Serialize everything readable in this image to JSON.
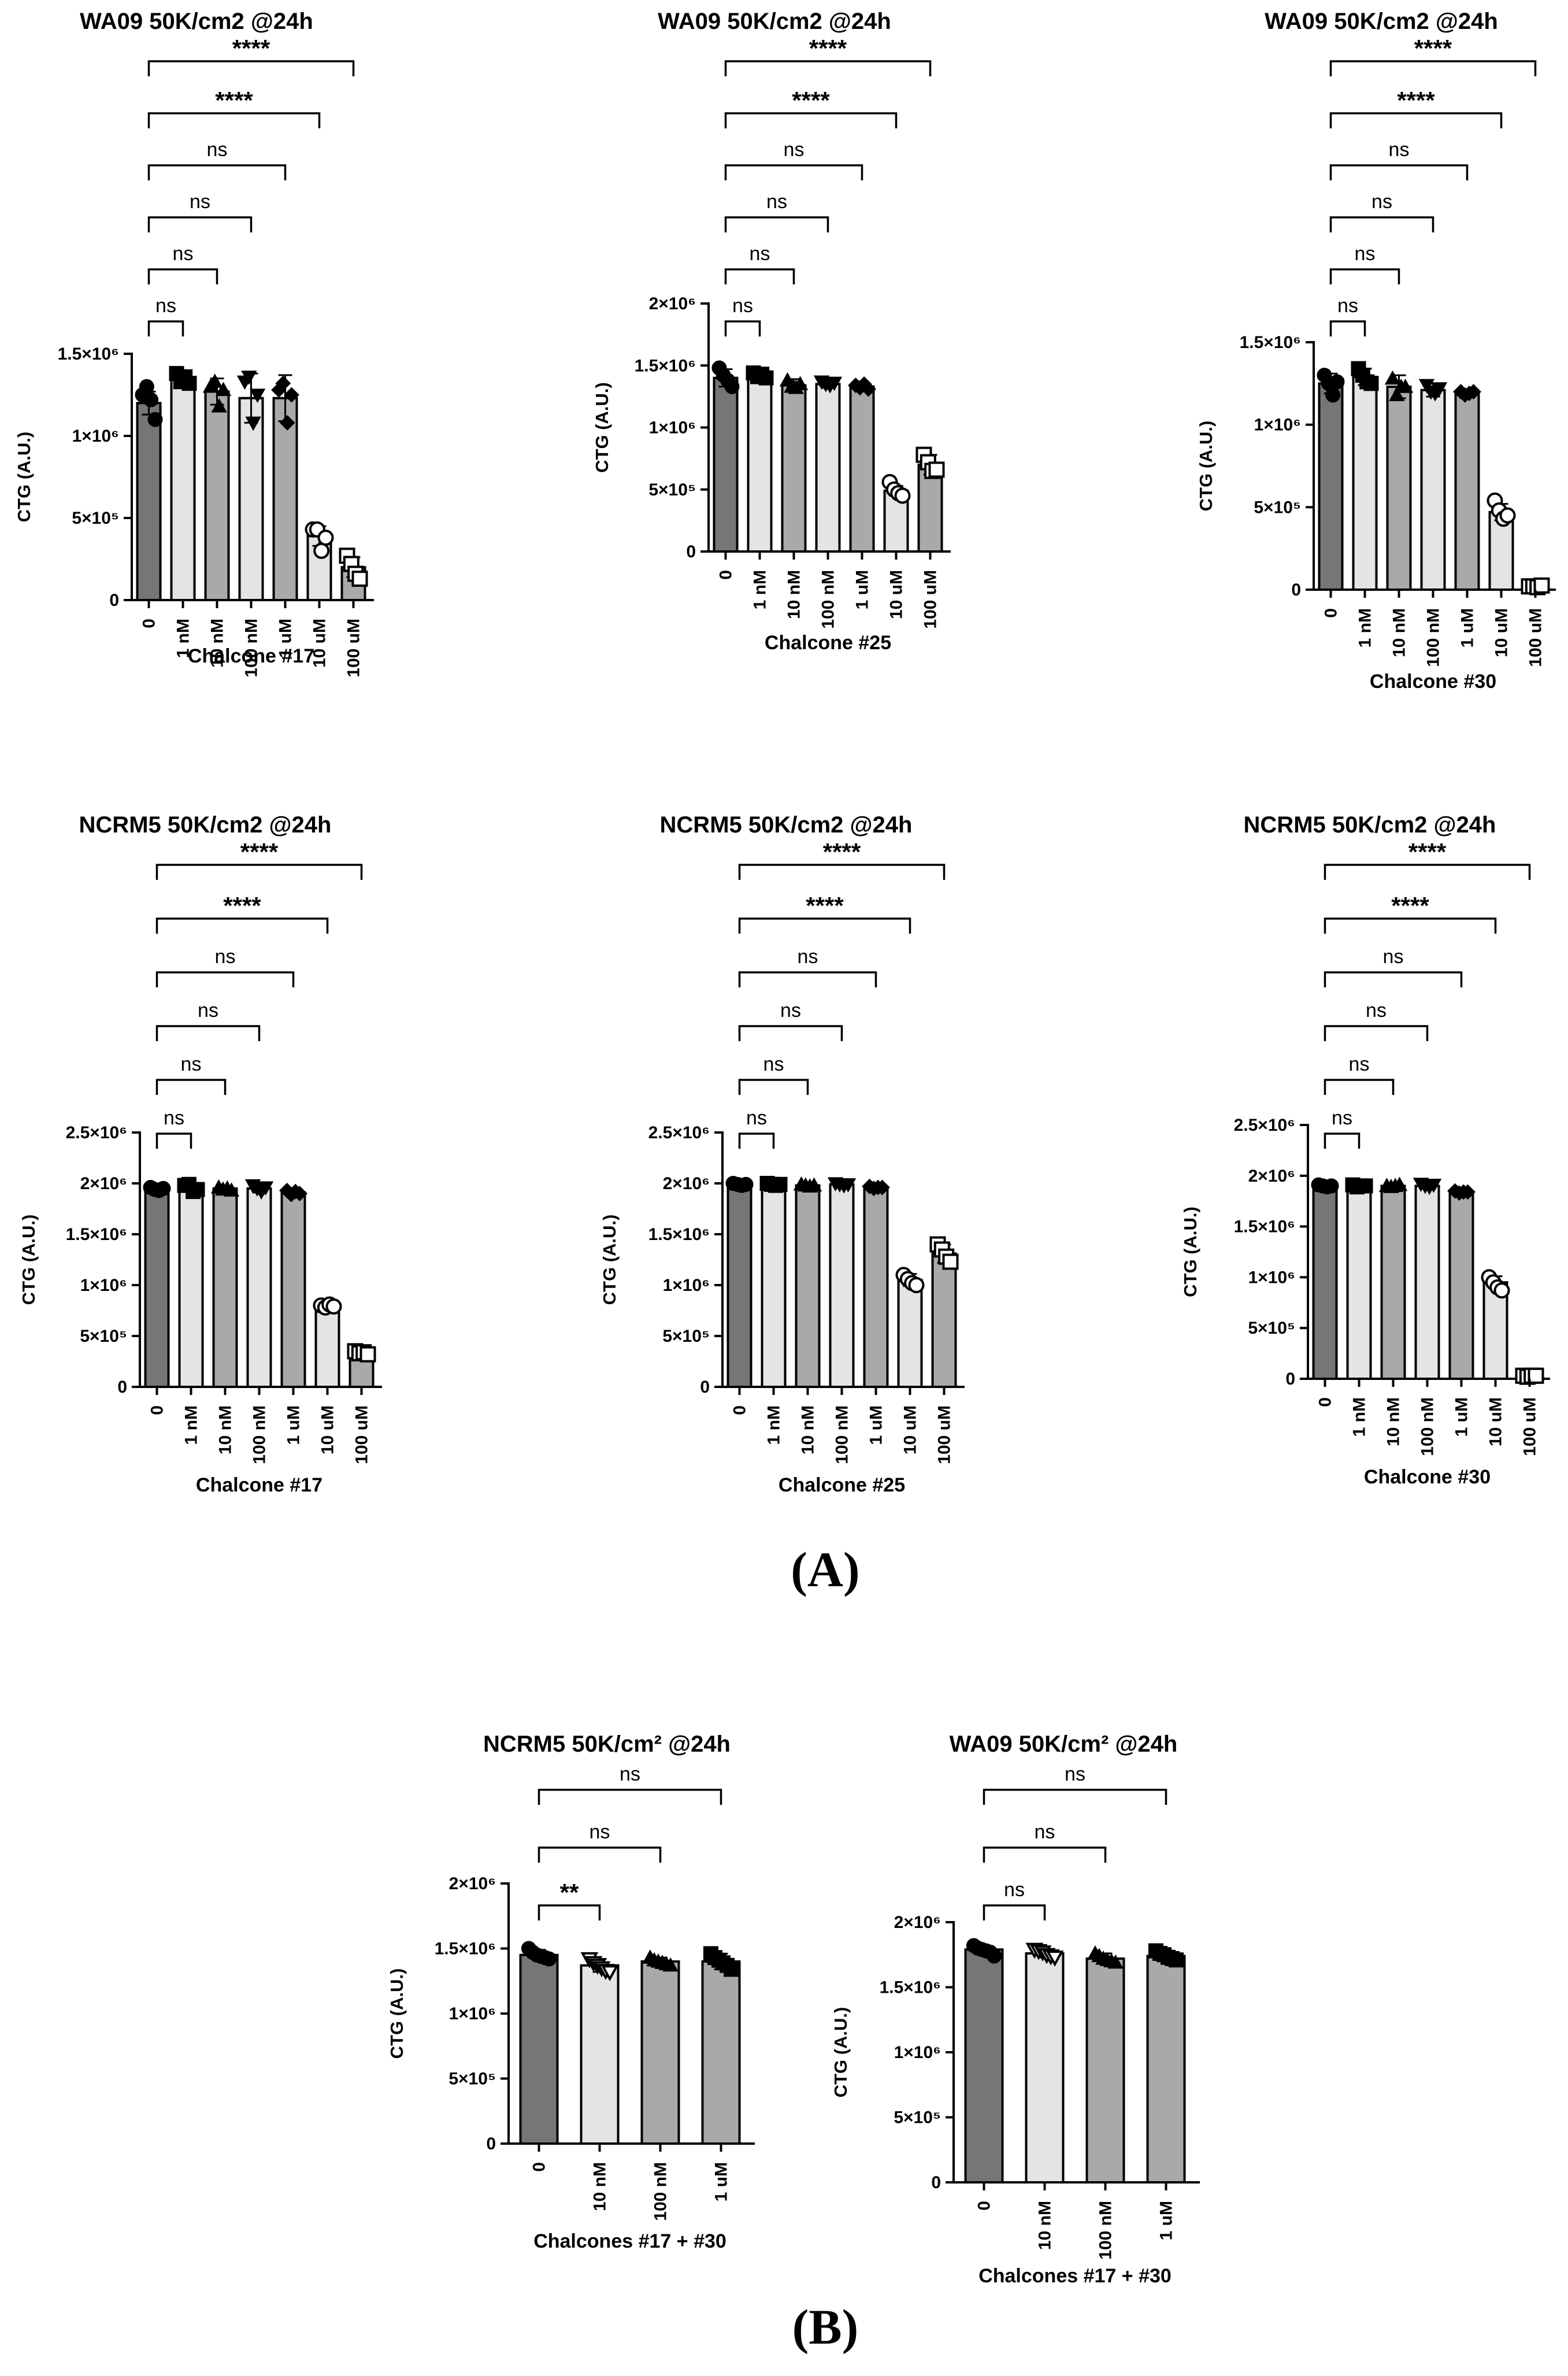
{
  "colors": {
    "dark": "#767676",
    "mid": "#a9a9a9",
    "light": "#e4e4e4",
    "axis": "#000000"
  },
  "panel_labels": {
    "A": "(A)",
    "B": "(B)"
  },
  "chart_data": [
    {
      "type": "bar",
      "title": "WA09 50K/cm2 @24h",
      "xlabel": "Chalcone #17",
      "ylabel": "CTG (A.U.)",
      "categories": [
        "0",
        "1 nM",
        "10 nM",
        "100 nM",
        "1 uM",
        "10 uM",
        "100 uM"
      ],
      "values": [
        1200000,
        1350000,
        1270000,
        1230000,
        1230000,
        390000,
        200000
      ],
      "errors": [
        70000,
        40000,
        80000,
        150000,
        140000,
        60000,
        60000
      ],
      "points": [
        [
          1250000,
          1300000,
          1220000,
          1100000
        ],
        [
          1380000,
          1330000,
          1360000,
          1320000
        ],
        [
          1300000,
          1330000,
          1180000,
          1280000
        ],
        [
          1330000,
          1360000,
          1080000,
          1250000
        ],
        [
          1280000,
          1320000,
          1080000,
          1250000
        ],
        [
          430000,
          430000,
          300000,
          380000
        ],
        [
          270000,
          220000,
          160000,
          130000
        ]
      ],
      "markers": [
        "circle-filled",
        "square-filled",
        "triangle-filled",
        "triangle-down-filled",
        "diamond-filled",
        "circle-open",
        "square-open"
      ],
      "ylim": [
        0,
        1500000
      ],
      "ytick_labels": [
        "0",
        "5×10⁵",
        "1×10⁶",
        "1.5×10⁶"
      ],
      "comparisons": [
        {
          "target": "1 nM",
          "label": "ns"
        },
        {
          "target": "10 nM",
          "label": "ns"
        },
        {
          "target": "100 nM",
          "label": "ns"
        },
        {
          "target": "1 uM",
          "label": "ns"
        },
        {
          "target": "10 uM",
          "label": "****"
        },
        {
          "target": "100 uM",
          "label": "****"
        }
      ]
    },
    {
      "type": "bar",
      "title": "WA09 50K/cm2 @24h",
      "xlabel": "Chalcone #25",
      "ylabel": "CTG (A.U.)",
      "categories": [
        "0",
        "1 nM",
        "10 nM",
        "100 nM",
        "1 uM",
        "10 uM",
        "100 uM"
      ],
      "values": [
        1400000,
        1420000,
        1340000,
        1350000,
        1330000,
        490000,
        700000
      ],
      "errors": [
        70000,
        20000,
        50000,
        30000,
        30000,
        40000,
        80000
      ],
      "points": [
        [
          1480000,
          1420000,
          1380000,
          1330000
        ],
        [
          1440000,
          1410000,
          1430000,
          1400000
        ],
        [
          1380000,
          1330000,
          1320000,
          1350000
        ],
        [
          1370000,
          1350000,
          1340000,
          1360000
        ],
        [
          1340000,
          1320000,
          1350000,
          1310000
        ],
        [
          560000,
          500000,
          470000,
          450000
        ],
        [
          780000,
          720000,
          650000,
          660000
        ]
      ],
      "markers": [
        "circle-filled",
        "square-filled",
        "triangle-filled",
        "triangle-down-filled",
        "diamond-filled",
        "circle-open",
        "square-open"
      ],
      "ylim": [
        0,
        2000000
      ],
      "ytick_labels": [
        "0",
        "5×10⁵",
        "1×10⁶",
        "1.5×10⁶",
        "2×10⁶"
      ],
      "comparisons": [
        {
          "target": "1 nM",
          "label": "ns"
        },
        {
          "target": "10 nM",
          "label": "ns"
        },
        {
          "target": "100 nM",
          "label": "ns"
        },
        {
          "target": "1 uM",
          "label": "ns"
        },
        {
          "target": "10 uM",
          "label": "****"
        },
        {
          "target": "100 uM",
          "label": "****"
        }
      ]
    },
    {
      "type": "bar",
      "title": "WA09 50K/cm2 @24h",
      "xlabel": "Chalcone #30",
      "ylabel": "CTG (A.U.)",
      "categories": [
        "0",
        "1 nM",
        "10 nM",
        "100 nM",
        "1 uM",
        "10 uM",
        "100 uM"
      ],
      "values": [
        1250000,
        1290000,
        1230000,
        1210000,
        1190000,
        470000,
        20000
      ],
      "errors": [
        60000,
        50000,
        70000,
        40000,
        20000,
        50000,
        10000
      ],
      "points": [
        [
          1300000,
          1250000,
          1180000,
          1260000
        ],
        [
          1340000,
          1300000,
          1260000,
          1250000
        ],
        [
          1280000,
          1180000,
          1230000,
          1230000
        ],
        [
          1240000,
          1200000,
          1190000,
          1220000
        ],
        [
          1200000,
          1180000,
          1190000,
          1200000
        ],
        [
          540000,
          480000,
          430000,
          450000
        ],
        [
          20000,
          20000,
          15000,
          25000
        ]
      ],
      "markers": [
        "circle-filled",
        "square-filled",
        "triangle-filled",
        "triangle-down-filled",
        "diamond-filled",
        "circle-open",
        "square-open"
      ],
      "ylim": [
        0,
        1500000
      ],
      "ytick_labels": [
        "0",
        "5×10⁵",
        "1×10⁶",
        "1.5×10⁶"
      ],
      "comparisons": [
        {
          "target": "1 nM",
          "label": "ns"
        },
        {
          "target": "10 nM",
          "label": "ns"
        },
        {
          "target": "100 nM",
          "label": "ns"
        },
        {
          "target": "1 uM",
          "label": "ns"
        },
        {
          "target": "10 uM",
          "label": "****"
        },
        {
          "target": "100 uM",
          "label": "****"
        }
      ]
    },
    {
      "type": "bar",
      "title": "NCRM5 50K/cm2 @24h",
      "xlabel": "Chalcone #17",
      "ylabel": "CTG (A.U.)",
      "categories": [
        "0",
        "1 nM",
        "10 nM",
        "100 nM",
        "1 uM",
        "10 uM",
        "100 uM"
      ],
      "values": [
        1940000,
        1960000,
        1950000,
        1950000,
        1910000,
        800000,
        340000
      ],
      "errors": [
        20000,
        40000,
        20000,
        40000,
        30000,
        20000,
        20000
      ],
      "points": [
        [
          1960000,
          1940000,
          1930000,
          1950000
        ],
        [
          1980000,
          1990000,
          1920000,
          1940000
        ],
        [
          1960000,
          1940000,
          1950000,
          1930000
        ],
        [
          1980000,
          1950000,
          1920000,
          1960000
        ],
        [
          1930000,
          1890000,
          1920000,
          1900000
        ],
        [
          800000,
          780000,
          810000,
          790000
        ],
        [
          350000,
          330000,
          340000,
          320000
        ]
      ],
      "markers": [
        "circle-filled",
        "square-filled",
        "triangle-filled",
        "triangle-down-filled",
        "diamond-filled",
        "circle-open",
        "square-open"
      ],
      "ylim": [
        0,
        2500000
      ],
      "ytick_labels": [
        "0",
        "5×10⁵",
        "1×10⁶",
        "1.5×10⁶",
        "2×10⁶",
        "2.5×10⁶"
      ],
      "comparisons": [
        {
          "target": "1 nM",
          "label": "ns"
        },
        {
          "target": "10 nM",
          "label": "ns"
        },
        {
          "target": "100 nM",
          "label": "ns"
        },
        {
          "target": "1 uM",
          "label": "ns"
        },
        {
          "target": "10 uM",
          "label": "****"
        },
        {
          "target": "100 uM",
          "label": "****"
        }
      ]
    },
    {
      "type": "bar",
      "title": "NCRM5 50K/cm2 @24h",
      "xlabel": "Chalcone #25",
      "ylabel": "CTG (A.U.)",
      "categories": [
        "0",
        "1 nM",
        "10 nM",
        "100 nM",
        "1 uM",
        "10 uM",
        "100 uM"
      ],
      "values": [
        1990000,
        1990000,
        1980000,
        1990000,
        1960000,
        1050000,
        1310000
      ],
      "errors": [
        20000,
        20000,
        20000,
        20000,
        20000,
        60000,
        90000
      ],
      "points": [
        [
          2000000,
          1990000,
          1980000,
          1990000
        ],
        [
          2000000,
          1990000,
          1980000,
          1990000
        ],
        [
          1990000,
          1980000,
          1970000,
          1980000
        ],
        [
          2000000,
          1990000,
          1980000,
          1990000
        ],
        [
          1970000,
          1950000,
          1960000,
          1960000
        ],
        [
          1100000,
          1060000,
          1020000,
          1000000
        ],
        [
          1400000,
          1350000,
          1280000,
          1230000
        ]
      ],
      "markers": [
        "circle-filled",
        "square-filled",
        "triangle-filled",
        "triangle-down-filled",
        "diamond-filled",
        "circle-open",
        "square-open"
      ],
      "ylim": [
        0,
        2500000
      ],
      "ytick_labels": [
        "0",
        "5×10⁵",
        "1×10⁶",
        "1.5×10⁶",
        "2×10⁶",
        "2.5×10⁶"
      ],
      "comparisons": [
        {
          "target": "1 nM",
          "label": "ns"
        },
        {
          "target": "10 nM",
          "label": "ns"
        },
        {
          "target": "100 nM",
          "label": "ns"
        },
        {
          "target": "1 uM",
          "label": "ns"
        },
        {
          "target": "10 uM",
          "label": "****"
        },
        {
          "target": "100 uM",
          "label": "****"
        }
      ]
    },
    {
      "type": "bar",
      "title": "NCRM5 50K/cm2 @24h",
      "xlabel": "Chalcone #30",
      "ylabel": "CTG (A.U.)",
      "categories": [
        "0",
        "1 nM",
        "10 nM",
        "100 nM",
        "1 uM",
        "10 uM",
        "100 uM"
      ],
      "values": [
        1900000,
        1900000,
        1900000,
        1900000,
        1840000,
        950000,
        30000
      ],
      "errors": [
        20000,
        20000,
        20000,
        20000,
        20000,
        60000,
        10000
      ],
      "points": [
        [
          1910000,
          1900000,
          1890000,
          1900000
        ],
        [
          1910000,
          1890000,
          1900000,
          1900000
        ],
        [
          1900000,
          1890000,
          1900000,
          1910000
        ],
        [
          1920000,
          1900000,
          1890000,
          1910000
        ],
        [
          1850000,
          1830000,
          1840000,
          1840000
        ],
        [
          1000000,
          950000,
          900000,
          870000
        ],
        [
          30000,
          20000,
          30000,
          30000
        ]
      ],
      "markers": [
        "circle-filled",
        "square-filled",
        "triangle-filled",
        "triangle-down-filled",
        "diamond-filled",
        "circle-open",
        "square-open"
      ],
      "ylim": [
        0,
        2500000
      ],
      "ytick_labels": [
        "0",
        "5×10⁵",
        "1×10⁶",
        "1.5×10⁶",
        "2×10⁶",
        "2.5×10⁶"
      ],
      "comparisons": [
        {
          "target": "1 nM",
          "label": "ns"
        },
        {
          "target": "10 nM",
          "label": "ns"
        },
        {
          "target": "100 nM",
          "label": "ns"
        },
        {
          "target": "1 uM",
          "label": "ns"
        },
        {
          "target": "10 uM",
          "label": "****"
        },
        {
          "target": "100 uM",
          "label": "****"
        }
      ]
    },
    {
      "type": "bar",
      "title": "NCRM5 50K/cm² @24h",
      "xlabel": "Chalcones #17 + #30",
      "ylabel": "CTG (A.U.)",
      "categories": [
        "0",
        "10 nM",
        "100 nM",
        "1 uM"
      ],
      "values": [
        1450000,
        1370000,
        1400000,
        1400000
      ],
      "errors": [
        40000,
        50000,
        30000,
        60000
      ],
      "points": [
        [
          1500000,
          1470000,
          1450000,
          1440000,
          1430000,
          1420000
        ],
        [
          1420000,
          1390000,
          1370000,
          1350000,
          1330000,
          1320000
        ],
        [
          1430000,
          1410000,
          1400000,
          1390000,
          1380000,
          1370000
        ],
        [
          1460000,
          1430000,
          1410000,
          1390000,
          1370000,
          1340000
        ]
      ],
      "markers": [
        "circle-filled",
        "triangle-down-open",
        "triangle-filled",
        "square-filled"
      ],
      "ylim": [
        0,
        2000000
      ],
      "ytick_labels": [
        "0",
        "5×10⁵",
        "1×10⁶",
        "1.5×10⁶",
        "2×10⁶"
      ],
      "comparisons": [
        {
          "target": "10 nM",
          "label": "**"
        },
        {
          "target": "100 nM",
          "label": "ns"
        },
        {
          "target": "1 uM",
          "label": "ns"
        }
      ]
    },
    {
      "type": "bar",
      "title": "WA09 50K/cm² @24h",
      "xlabel": "Chalcones #17 + #30",
      "ylabel": "CTG (A.U.)",
      "categories": [
        "0",
        "10 nM",
        "100 nM",
        "1 uM"
      ],
      "values": [
        1790000,
        1760000,
        1720000,
        1740000
      ],
      "errors": [
        30000,
        30000,
        40000,
        30000
      ],
      "points": [
        [
          1820000,
          1800000,
          1790000,
          1780000,
          1770000,
          1740000
        ],
        [
          1790000,
          1780000,
          1770000,
          1750000,
          1740000,
          1730000
        ],
        [
          1760000,
          1740000,
          1720000,
          1710000,
          1700000,
          1690000
        ],
        [
          1780000,
          1760000,
          1750000,
          1730000,
          1720000,
          1710000
        ]
      ],
      "markers": [
        "circle-filled",
        "triangle-down-open",
        "triangle-filled",
        "square-filled"
      ],
      "ylim": [
        0,
        2000000
      ],
      "ytick_labels": [
        "0",
        "5×10⁵",
        "1×10⁶",
        "1.5×10⁶",
        "2×10⁶"
      ],
      "comparisons": [
        {
          "target": "10 nM",
          "label": "ns"
        },
        {
          "target": "100 nM",
          "label": "ns"
        },
        {
          "target": "1 uM",
          "label": "ns"
        }
      ]
    }
  ]
}
